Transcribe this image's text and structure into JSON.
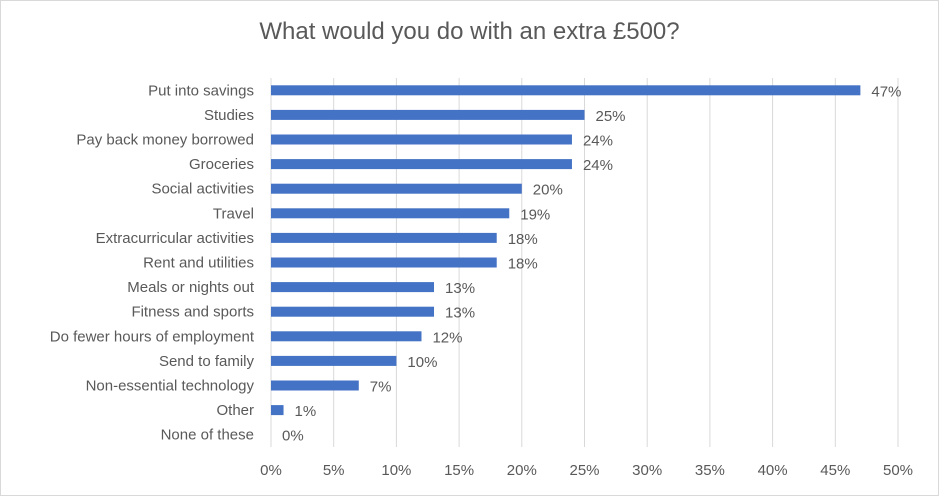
{
  "chart_data": {
    "type": "bar",
    "orientation": "horizontal",
    "title": "What would you do with an extra £500?",
    "categories": [
      "Put into savings",
      "Studies",
      "Pay back money borrowed",
      "Groceries",
      "Social activities",
      "Travel",
      "Extracurricular activities",
      "Rent and utilities",
      "Meals or nights out",
      "Fitness and sports",
      "Do fewer hours of employment",
      "Send to family",
      "Non-essential technology",
      "Other",
      "None of these"
    ],
    "values": [
      47,
      25,
      24,
      24,
      20,
      19,
      18,
      18,
      13,
      13,
      12,
      10,
      7,
      1,
      0
    ],
    "value_labels": [
      "47%",
      "25%",
      "24%",
      "24%",
      "20%",
      "19%",
      "18%",
      "18%",
      "13%",
      "13%",
      "12%",
      "10%",
      "7%",
      "1%",
      "0%"
    ],
    "xlim": [
      0,
      50
    ],
    "x_ticks": [
      0,
      5,
      10,
      15,
      20,
      25,
      30,
      35,
      40,
      45,
      50
    ],
    "x_tick_labels": [
      "0%",
      "5%",
      "10%",
      "15%",
      "20%",
      "25%",
      "30%",
      "35%",
      "40%",
      "45%",
      "50%"
    ],
    "xlabel": "",
    "ylabel": "",
    "grid": true,
    "legend": "none",
    "colors": {
      "bar": "#4472C4",
      "grid": "#d9d9d9",
      "text": "#595959"
    }
  }
}
